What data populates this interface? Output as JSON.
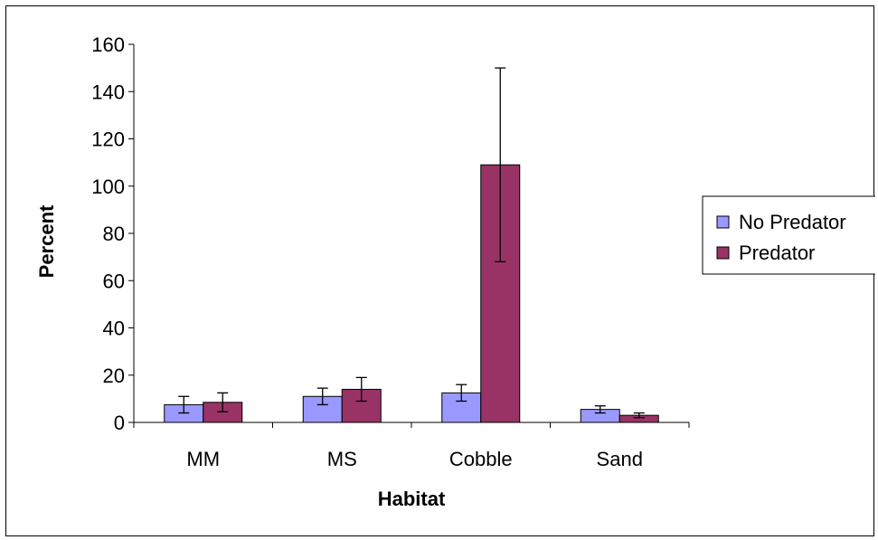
{
  "chart_data": {
    "type": "bar",
    "title": "",
    "xlabel": "Habitat",
    "ylabel": "Percent",
    "ylim": [
      0,
      160
    ],
    "yticks": [
      0,
      20,
      40,
      60,
      80,
      100,
      120,
      140,
      160
    ],
    "categories": [
      "MM",
      "MS",
      "Cobble",
      "Sand"
    ],
    "series": [
      {
        "name": "No Predator",
        "color": "#9999ff",
        "values": [
          7.5,
          11,
          12.5,
          5.5
        ],
        "error": [
          3.5,
          3.5,
          3.5,
          1.5
        ]
      },
      {
        "name": "Predator",
        "color": "#993366",
        "values": [
          8.5,
          14,
          109,
          3
        ],
        "error": [
          4,
          5,
          41,
          1
        ]
      }
    ],
    "grid": false,
    "legend_position": "right"
  }
}
